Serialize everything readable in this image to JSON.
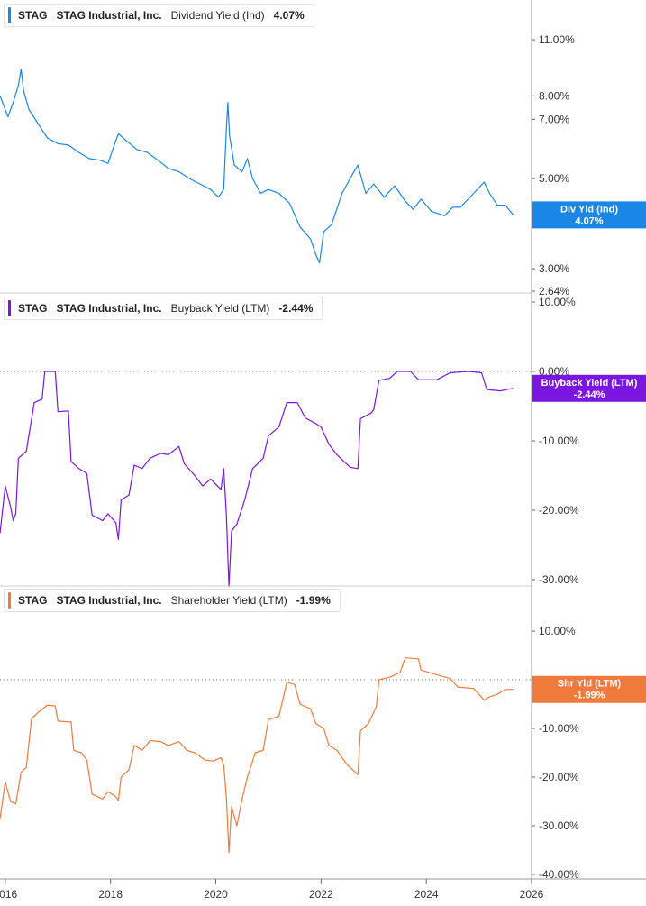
{
  "panels": [
    {
      "ticker": "STAG",
      "company": "STAG Industrial, Inc.",
      "metric": "Dividend Yield (Ind)",
      "value": "4.07%",
      "color": "#1a86e6",
      "badge": {
        "line1": "Div Yld (Ind)",
        "line2": "4.07%"
      }
    },
    {
      "ticker": "STAG",
      "company": "STAG Industrial, Inc.",
      "metric": "Buyback Yield (LTM)",
      "value": "-2.44%",
      "color": "#7a16e0",
      "badge": {
        "line1": "Buyback Yield (LTM)",
        "line2": "-2.44%"
      }
    },
    {
      "ticker": "STAG",
      "company": "STAG Industrial, Inc.",
      "metric": "Shareholder Yield (LTM)",
      "value": "-1.99%",
      "color": "#f07a3c",
      "badge": {
        "line1": "Shr Yld (LTM)",
        "line2": "-1.99%"
      }
    }
  ],
  "chart_data": [
    {
      "type": "line",
      "title": "STAG Industrial, Inc. Dividend Yield (Ind)",
      "scale": "log",
      "ylim": [
        2.64,
        14.0
      ],
      "yticks": [
        {
          "v": 11.0,
          "label": "11.00%"
        },
        {
          "v": 8.0,
          "label": "8.00%"
        },
        {
          "v": 7.0,
          "label": "7.00%"
        },
        {
          "v": 5.0,
          "label": "5.00%"
        },
        {
          "v": 3.0,
          "label": "3.00%"
        },
        {
          "v": 2.64,
          "label": "2.64%"
        }
      ],
      "series": [
        {
          "name": "Dividend Yield (Ind)",
          "points": [
            [
              2015.9,
              8.0
            ],
            [
              2016.05,
              7.1
            ],
            [
              2016.15,
              7.7
            ],
            [
              2016.25,
              8.5
            ],
            [
              2016.3,
              9.3
            ],
            [
              2016.35,
              8.2
            ],
            [
              2016.45,
              7.4
            ],
            [
              2016.6,
              6.9
            ],
            [
              2016.8,
              6.3
            ],
            [
              2017.0,
              6.1
            ],
            [
              2017.2,
              6.05
            ],
            [
              2017.4,
              5.8
            ],
            [
              2017.6,
              5.6
            ],
            [
              2017.8,
              5.55
            ],
            [
              2017.95,
              5.45
            ],
            [
              2018.1,
              6.2
            ],
            [
              2018.15,
              6.45
            ],
            [
              2018.3,
              6.2
            ],
            [
              2018.5,
              5.9
            ],
            [
              2018.7,
              5.8
            ],
            [
              2018.9,
              5.55
            ],
            [
              2019.1,
              5.3
            ],
            [
              2019.3,
              5.2
            ],
            [
              2019.5,
              5.0
            ],
            [
              2019.7,
              4.85
            ],
            [
              2019.9,
              4.7
            ],
            [
              2020.05,
              4.5
            ],
            [
              2020.15,
              4.7
            ],
            [
              2020.2,
              6.6
            ],
            [
              2020.23,
              7.7
            ],
            [
              2020.26,
              6.4
            ],
            [
              2020.35,
              5.4
            ],
            [
              2020.5,
              5.2
            ],
            [
              2020.6,
              5.6
            ],
            [
              2020.7,
              5.0
            ],
            [
              2020.85,
              4.6
            ],
            [
              2021.0,
              4.7
            ],
            [
              2021.2,
              4.6
            ],
            [
              2021.4,
              4.35
            ],
            [
              2021.6,
              3.8
            ],
            [
              2021.8,
              3.55
            ],
            [
              2021.9,
              3.25
            ],
            [
              2021.97,
              3.1
            ],
            [
              2022.05,
              3.7
            ],
            [
              2022.2,
              3.85
            ],
            [
              2022.4,
              4.6
            ],
            [
              2022.55,
              5.0
            ],
            [
              2022.7,
              5.4
            ],
            [
              2022.85,
              4.6
            ],
            [
              2023.0,
              4.85
            ],
            [
              2023.2,
              4.5
            ],
            [
              2023.4,
              4.8
            ],
            [
              2023.6,
              4.4
            ],
            [
              2023.75,
              4.2
            ],
            [
              2023.9,
              4.45
            ],
            [
              2024.1,
              4.15
            ],
            [
              2024.35,
              4.05
            ],
            [
              2024.5,
              4.25
            ],
            [
              2024.65,
              4.25
            ],
            [
              2024.9,
              4.6
            ],
            [
              2025.1,
              4.9
            ],
            [
              2025.2,
              4.6
            ],
            [
              2025.35,
              4.3
            ],
            [
              2025.5,
              4.3
            ],
            [
              2025.65,
              4.07
            ]
          ]
        }
      ]
    },
    {
      "type": "line",
      "title": "STAG Industrial, Inc. Buyback Yield (LTM)",
      "scale": "linear",
      "ylim": [
        -39.5,
        10.0
      ],
      "yticks": [
        {
          "v": 10,
          "label": "10.00%"
        },
        {
          "v": 0,
          "label": "0.00%"
        },
        {
          "v": -10,
          "label": "-10.00%"
        },
        {
          "v": -20,
          "label": "-20.00%"
        },
        {
          "v": -30,
          "label": "-30.00%"
        }
      ],
      "series": [
        {
          "name": "Buyback Yield (LTM)",
          "points": [
            [
              2015.9,
              -23.3
            ],
            [
              2016.0,
              -16.5
            ],
            [
              2016.1,
              -19.5
            ],
            [
              2016.15,
              -21.5
            ],
            [
              2016.2,
              -20.5
            ],
            [
              2016.25,
              -12.5
            ],
            [
              2016.4,
              -11.5
            ],
            [
              2016.55,
              -4.5
            ],
            [
              2016.7,
              -4.0
            ],
            [
              2016.75,
              0.0
            ],
            [
              2016.95,
              0.0
            ],
            [
              2017.0,
              -5.8
            ],
            [
              2017.2,
              -5.7
            ],
            [
              2017.25,
              -13.0
            ],
            [
              2017.4,
              -14.0
            ],
            [
              2017.55,
              -14.7
            ],
            [
              2017.65,
              -20.7
            ],
            [
              2017.85,
              -21.5
            ],
            [
              2017.95,
              -20.5
            ],
            [
              2018.1,
              -21.8
            ],
            [
              2018.15,
              -24.2
            ],
            [
              2018.2,
              -18.5
            ],
            [
              2018.35,
              -17.8
            ],
            [
              2018.45,
              -13.5
            ],
            [
              2018.6,
              -14.0
            ],
            [
              2018.75,
              -12.5
            ],
            [
              2018.95,
              -11.8
            ],
            [
              2019.1,
              -12.0
            ],
            [
              2019.3,
              -10.8
            ],
            [
              2019.4,
              -13.3
            ],
            [
              2019.6,
              -15.0
            ],
            [
              2019.75,
              -16.5
            ],
            [
              2019.9,
              -15.5
            ],
            [
              2020.1,
              -17.0
            ],
            [
              2020.15,
              -14.0
            ],
            [
              2020.2,
              -20.5
            ],
            [
              2020.25,
              -31.0
            ],
            [
              2020.3,
              -23.0
            ],
            [
              2020.4,
              -22.0
            ],
            [
              2020.55,
              -18.5
            ],
            [
              2020.7,
              -14.0
            ],
            [
              2020.9,
              -12.5
            ],
            [
              2021.0,
              -9.3
            ],
            [
              2021.2,
              -8.0
            ],
            [
              2021.35,
              -4.5
            ],
            [
              2021.55,
              -4.5
            ],
            [
              2021.7,
              -6.7
            ],
            [
              2021.9,
              -7.5
            ],
            [
              2022.0,
              -8.0
            ],
            [
              2022.15,
              -10.5
            ],
            [
              2022.3,
              -12.0
            ],
            [
              2022.55,
              -13.8
            ],
            [
              2022.7,
              -14.0
            ],
            [
              2022.75,
              -6.8
            ],
            [
              2022.95,
              -6.0
            ],
            [
              2023.0,
              -5.5
            ],
            [
              2023.1,
              -1.3
            ],
            [
              2023.3,
              -1.0
            ],
            [
              2023.45,
              0.0
            ],
            [
              2023.7,
              0.0
            ],
            [
              2023.85,
              -1.2
            ],
            [
              2024.2,
              -1.2
            ],
            [
              2024.45,
              -0.2
            ],
            [
              2024.8,
              0.0
            ],
            [
              2025.05,
              -0.2
            ],
            [
              2025.15,
              -2.6
            ],
            [
              2025.4,
              -2.8
            ],
            [
              2025.6,
              -2.5
            ],
            [
              2025.65,
              -2.44
            ]
          ]
        }
      ]
    },
    {
      "type": "line",
      "title": "STAG Industrial, Inc. Shareholder Yield (LTM)",
      "scale": "linear",
      "ylim": [
        -40.5,
        14.0
      ],
      "yticks": [
        {
          "v": 10,
          "label": "10.00%"
        },
        {
          "v": -10,
          "label": "-10.00%"
        },
        {
          "v": -20,
          "label": "-20.00%"
        },
        {
          "v": -30,
          "label": "-30.00%"
        },
        {
          "v": -40,
          "label": "-40.00%"
        }
      ],
      "series": [
        {
          "name": "Shareholder Yield (LTM)",
          "points": [
            [
              2015.9,
              -28.5
            ],
            [
              2016.0,
              -21.0
            ],
            [
              2016.1,
              -25.0
            ],
            [
              2016.2,
              -25.5
            ],
            [
              2016.3,
              -19.0
            ],
            [
              2016.4,
              -18.0
            ],
            [
              2016.5,
              -8.0
            ],
            [
              2016.65,
              -6.5
            ],
            [
              2016.8,
              -5.2
            ],
            [
              2016.95,
              -5.4
            ],
            [
              2017.0,
              -8.5
            ],
            [
              2017.25,
              -8.7
            ],
            [
              2017.3,
              -14.5
            ],
            [
              2017.45,
              -15.0
            ],
            [
              2017.55,
              -16.5
            ],
            [
              2017.65,
              -23.5
            ],
            [
              2017.85,
              -24.5
            ],
            [
              2017.95,
              -23.0
            ],
            [
              2018.1,
              -24.0
            ],
            [
              2018.15,
              -24.8
            ],
            [
              2018.2,
              -20.0
            ],
            [
              2018.35,
              -18.5
            ],
            [
              2018.45,
              -13.5
            ],
            [
              2018.6,
              -14.5
            ],
            [
              2018.75,
              -12.5
            ],
            [
              2018.95,
              -12.7
            ],
            [
              2019.1,
              -13.5
            ],
            [
              2019.3,
              -12.7
            ],
            [
              2019.45,
              -14.5
            ],
            [
              2019.6,
              -15.0
            ],
            [
              2019.8,
              -16.5
            ],
            [
              2019.95,
              -16.7
            ],
            [
              2020.1,
              -16.0
            ],
            [
              2020.15,
              -17.5
            ],
            [
              2020.2,
              -24.0
            ],
            [
              2020.25,
              -35.5
            ],
            [
              2020.3,
              -26.0
            ],
            [
              2020.4,
              -30.0
            ],
            [
              2020.5,
              -24.5
            ],
            [
              2020.6,
              -20.0
            ],
            [
              2020.75,
              -15.0
            ],
            [
              2020.9,
              -14.5
            ],
            [
              2021.0,
              -8.2
            ],
            [
              2021.2,
              -7.5
            ],
            [
              2021.35,
              -0.5
            ],
            [
              2021.5,
              -1.0
            ],
            [
              2021.6,
              -5.0
            ],
            [
              2021.8,
              -6.0
            ],
            [
              2021.9,
              -9.0
            ],
            [
              2022.05,
              -10.0
            ],
            [
              2022.15,
              -13.5
            ],
            [
              2022.3,
              -14.5
            ],
            [
              2022.5,
              -17.5
            ],
            [
              2022.7,
              -19.5
            ],
            [
              2022.75,
              -10.5
            ],
            [
              2022.9,
              -9.0
            ],
            [
              2023.05,
              -5.5
            ],
            [
              2023.1,
              0.0
            ],
            [
              2023.3,
              0.5
            ],
            [
              2023.5,
              1.5
            ],
            [
              2023.6,
              4.5
            ],
            [
              2023.85,
              4.3
            ],
            [
              2023.9,
              2.0
            ],
            [
              2024.2,
              1.0
            ],
            [
              2024.45,
              0.3
            ],
            [
              2024.6,
              -1.5
            ],
            [
              2024.9,
              -1.8
            ],
            [
              2025.1,
              -4.2
            ],
            [
              2025.2,
              -3.5
            ],
            [
              2025.35,
              -3.0
            ],
            [
              2025.5,
              -2.0
            ],
            [
              2025.65,
              -1.99
            ]
          ]
        }
      ]
    }
  ],
  "x_axis": {
    "ticks": [
      {
        "v": 2016,
        "label": "2016"
      },
      {
        "v": 2018,
        "label": "2018"
      },
      {
        "v": 2020,
        "label": "2020"
      },
      {
        "v": 2022,
        "label": "2022"
      },
      {
        "v": 2024,
        "label": "2024"
      },
      {
        "v": 2026,
        "label": "2026"
      }
    ],
    "range": [
      2015.9,
      2026.0
    ]
  }
}
